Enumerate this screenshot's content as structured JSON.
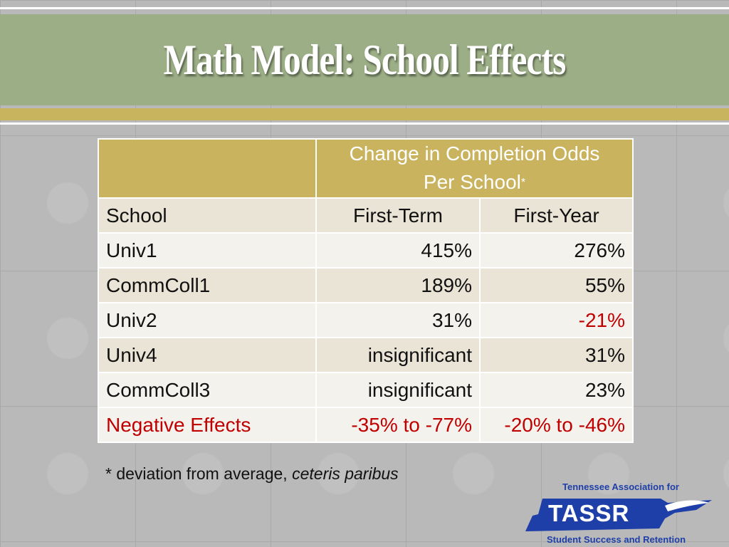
{
  "slide": {
    "title": "Math Model: School Effects"
  },
  "table": {
    "header_line1": "Change in Completion Odds",
    "header_line2": "Per School",
    "header_marker": "*",
    "columns": [
      "School",
      "First-Term",
      "First-Year"
    ],
    "rows": [
      {
        "school": "Univ1",
        "first_term": "415%",
        "first_year": "276%"
      },
      {
        "school": "CommColl1",
        "first_term": "189%",
        "first_year": "55%"
      },
      {
        "school": "Univ2",
        "first_term": "31%",
        "first_year": "-21%"
      },
      {
        "school": "Univ4",
        "first_term": "insignificant",
        "first_year": "31%"
      },
      {
        "school": "CommColl3",
        "first_term": "insignificant",
        "first_year": "23%"
      },
      {
        "school": "Negative Effects",
        "first_term": "-35% to -77%",
        "first_year": "-20% to -46%"
      }
    ]
  },
  "footnote": {
    "prefix": "* deviation from average, ",
    "italic": "ceteris paribus"
  },
  "logo": {
    "top_text": "Tennessee Association for",
    "mark": "TASSR",
    "bottom_text": "Student Success and Retention"
  },
  "colors": {
    "title_bar": "#9cae86",
    "gold": "#c9b35e",
    "negative": "#c00000",
    "logo_blue": "#1f3fa8"
  }
}
